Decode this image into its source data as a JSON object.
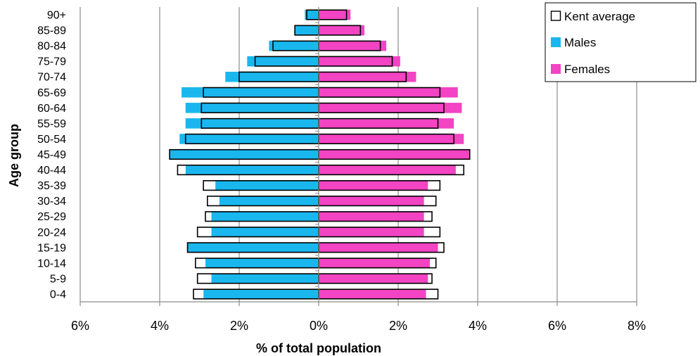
{
  "chart_data": {
    "type": "bar",
    "orientation": "horizontal",
    "subtype": "population-pyramid",
    "title": "",
    "xlabel": "% of total population",
    "ylabel": "Age group",
    "xlim": [
      -6,
      8
    ],
    "xticks": [
      -6,
      -4,
      -2,
      0,
      2,
      4,
      6,
      8
    ],
    "xtick_labels": [
      "6%",
      "4%",
      "2%",
      "0%",
      "2%",
      "4%",
      "6%",
      "8%"
    ],
    "grid": "vertical major gridlines",
    "legend_position": "top-right",
    "categories": [
      "0-4",
      "5-9",
      "10-14",
      "15-19",
      "20-24",
      "25-29",
      "30-34",
      "35-39",
      "40-44",
      "45-49",
      "50-54",
      "55-59",
      "60-64",
      "65-69",
      "70-74",
      "75-79",
      "80-84",
      "85-89",
      "90+"
    ],
    "series": [
      {
        "name": "Males",
        "color": "#1ab7ef",
        "values": [
          -2.9,
          -2.7,
          -2.85,
          -3.3,
          -2.7,
          -2.7,
          -2.5,
          -2.6,
          -3.35,
          -3.75,
          -3.5,
          -3.35,
          -3.35,
          -3.45,
          -2.35,
          -1.8,
          -1.25,
          -0.6,
          -0.35
        ]
      },
      {
        "name": "Females",
        "color": "#f244c3",
        "values": [
          2.7,
          2.75,
          2.8,
          3.0,
          2.65,
          2.65,
          2.65,
          2.75,
          3.45,
          3.8,
          3.65,
          3.4,
          3.6,
          3.5,
          2.45,
          2.05,
          1.7,
          1.15,
          0.8
        ]
      },
      {
        "name": "Kent average",
        "style": "outlined bars, black border",
        "values_males": [
          -3.15,
          -3.05,
          -3.1,
          -3.3,
          -3.05,
          -2.85,
          -2.8,
          -2.9,
          -3.55,
          -3.75,
          -3.35,
          -2.95,
          -2.95,
          -2.9,
          -2.0,
          -1.6,
          -1.15,
          -0.6,
          -0.3
        ],
        "values_females": [
          3.0,
          2.85,
          2.95,
          3.15,
          3.05,
          2.85,
          2.95,
          3.05,
          3.65,
          3.8,
          3.4,
          3.0,
          3.15,
          3.05,
          2.2,
          1.85,
          1.55,
          1.05,
          0.7
        ]
      }
    ],
    "legend": [
      {
        "label": "Kent average",
        "swatch": "outline"
      },
      {
        "label": "Males",
        "color": "#1ab7ef"
      },
      {
        "label": "Females",
        "color": "#f244c3"
      }
    ]
  }
}
